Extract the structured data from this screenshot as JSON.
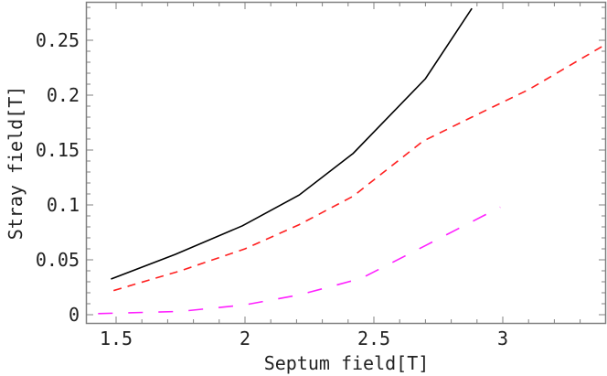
{
  "chart_data": {
    "type": "line",
    "title": "",
    "xlabel": "Septum field[T]",
    "ylabel": "Stray field[T]",
    "xlim": [
      1.41,
      3.39
    ],
    "ylim": [
      -0.008,
      0.285
    ],
    "x_ticks": [
      1.5,
      2,
      2.5,
      3
    ],
    "x_tick_labels": [
      "1.5",
      "2",
      "2.5",
      "3"
    ],
    "y_ticks": [
      0,
      0.05,
      0.1,
      0.15,
      0.2,
      0.25
    ],
    "y_tick_labels": [
      "0",
      "0.05",
      "0.1",
      "0.15",
      "0.2",
      "0.25"
    ],
    "grid": false,
    "legend": null,
    "series": [
      {
        "name": "solid black",
        "color": "#000000",
        "style": "solid",
        "x": [
          1.48,
          1.73,
          1.99,
          2.21,
          2.42,
          2.7,
          2.88
        ],
        "y": [
          0.0325,
          0.055,
          0.081,
          0.109,
          0.147,
          0.215,
          0.279
        ]
      },
      {
        "name": "dashed red",
        "color": "#ff2020",
        "style": "dashed",
        "x": [
          1.49,
          1.75,
          2.0,
          2.21,
          2.42,
          2.69,
          2.88,
          3.1,
          3.39
        ],
        "y": [
          0.022,
          0.04,
          0.06,
          0.082,
          0.108,
          0.158,
          0.18,
          0.205,
          0.245
        ]
      },
      {
        "name": "long-dashed magenta",
        "color": "#ff20ff",
        "style": "longdash",
        "x": [
          1.43,
          1.75,
          2.0,
          2.21,
          2.45,
          2.7,
          2.99
        ],
        "y": [
          0.001,
          0.003,
          0.009,
          0.018,
          0.033,
          0.063,
          0.098
        ]
      }
    ]
  },
  "axes": {
    "xlabel": "Septum field[T]",
    "ylabel": "Stray field[T]"
  }
}
